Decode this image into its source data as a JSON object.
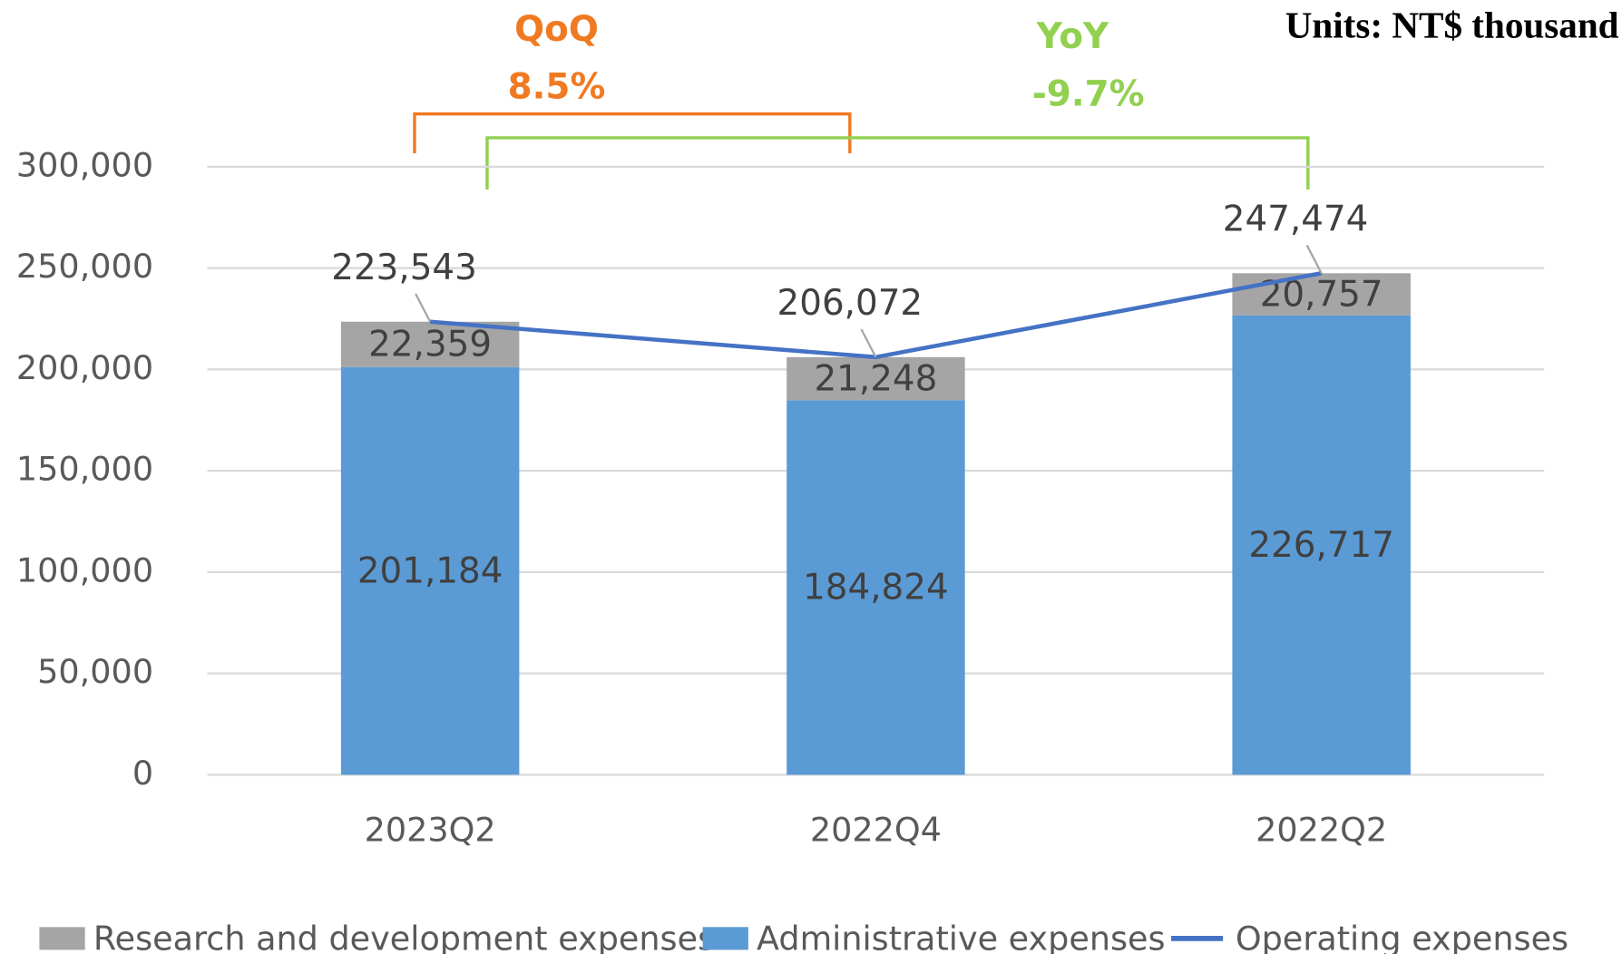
{
  "chart_data": {
    "type": "bar",
    "categories": [
      "2023Q2",
      "2022Q4",
      "2022Q2"
    ],
    "series": [
      {
        "name": "Research and development expenses",
        "type": "bar",
        "color": "#a5a5a5",
        "values": [
          22359,
          21248,
          20757
        ],
        "value_labels": [
          "22,359",
          "21,248",
          "20,757"
        ]
      },
      {
        "name": "Administrative expenses",
        "type": "bar",
        "color": "#5b9bd5",
        "values": [
          201184,
          184824,
          226717
        ],
        "value_labels": [
          "201,184",
          "184,824",
          "226,717"
        ]
      },
      {
        "name": "Operating expenses",
        "type": "line",
        "color": "#4472c4",
        "values": [
          223543,
          206072,
          247474
        ],
        "value_labels": [
          "223,543",
          "206,072",
          "247,474"
        ]
      }
    ],
    "stacked": true,
    "ylim": [
      0,
      300000
    ],
    "yticks": [
      0,
      {
        "value": 50000,
        "label": "50,000"
      },
      {
        "value": 100000,
        "label": "100,000"
      },
      {
        "value": 150000,
        "label": "150,000"
      },
      {
        "value": 200000,
        "label": "200,000"
      },
      {
        "value": 250000,
        "label": "250,000"
      },
      {
        "value": 300000,
        "label": "300,000"
      }
    ],
    "grid": true,
    "legend": "bottom",
    "annotations": [
      {
        "text": "QoQ",
        "color": "#f07a22"
      },
      {
        "text": "8.5%",
        "color": "#f07a22"
      },
      {
        "text": "YoY",
        "color": "#92d050"
      },
      {
        "text": "-9.7%",
        "color": "#92d050"
      },
      {
        "text": "Units: NT$ thousand"
      }
    ]
  }
}
